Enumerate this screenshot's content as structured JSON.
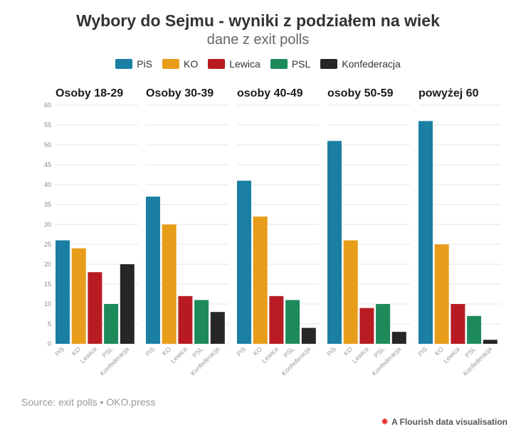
{
  "header": {
    "title": "Wybory do Sejmu - wyniki z podziałem na wiek",
    "subtitle": "dane z exit polls"
  },
  "footer": {
    "source": "Source: exit polls • OKO.press",
    "credit": "A Flourish data visualisation",
    "credit_icon": "flourish-logo-icon"
  },
  "chart_data": {
    "type": "bar",
    "layout": "small-multiples",
    "legend_position": "top-center",
    "grid": true,
    "ylim": [
      0,
      60
    ],
    "yticks": [
      0,
      5,
      10,
      15,
      20,
      25,
      30,
      35,
      40,
      45,
      50,
      55,
      60
    ],
    "categories": [
      "PiS",
      "KO",
      "Lewica",
      "PSL",
      "Konfederacja"
    ],
    "colors": [
      "#1a7fa3",
      "#e89d1a",
      "#b81c22",
      "#1e8a5c",
      "#262626"
    ],
    "panels": [
      {
        "title": "Osoby 18-29",
        "values": [
          26,
          24,
          18,
          10,
          20
        ]
      },
      {
        "title": "Osoby 30-39",
        "values": [
          37,
          30,
          12,
          11,
          8
        ]
      },
      {
        "title": "osoby 40-49",
        "values": [
          41,
          32,
          12,
          11,
          4
        ]
      },
      {
        "title": "osoby 50-59",
        "values": [
          51,
          26,
          9,
          10,
          3
        ]
      },
      {
        "title": "powyżej 60",
        "values": [
          56,
          25,
          10,
          7,
          1
        ]
      }
    ]
  }
}
